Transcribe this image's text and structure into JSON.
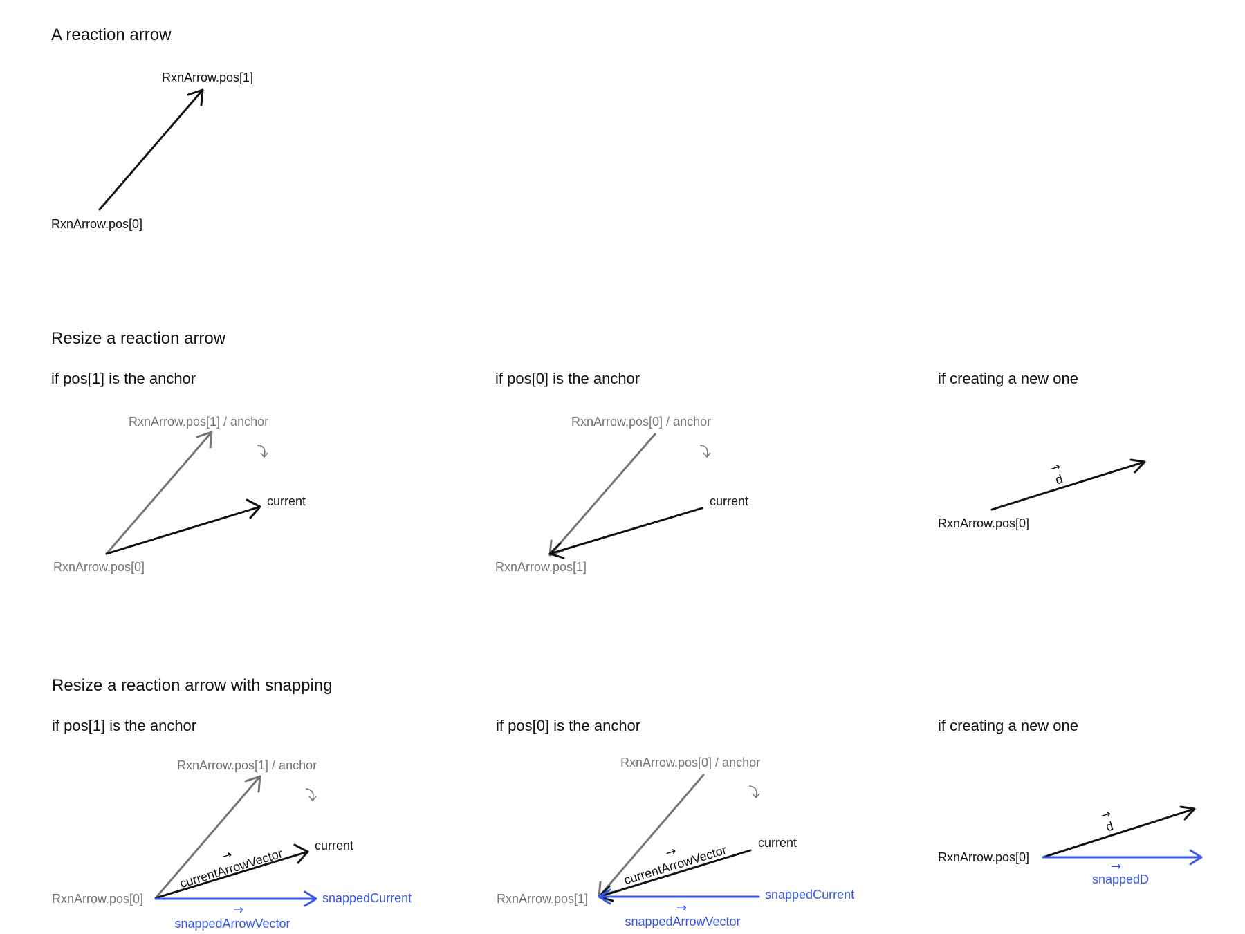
{
  "colors": {
    "primary": "#111111",
    "anchor": "#757575",
    "snap": "#3757e6"
  },
  "sections": {
    "basic": {
      "title": "A reaction arrow",
      "end_label": "RxnArrow.pos[1]",
      "start_label": "RxnArrow.pos[0]"
    },
    "resize": {
      "title": "Resize a reaction arrow",
      "panel_a": {
        "title": "if pos[1] is the anchor",
        "anchor_label": "RxnArrow.pos[1] / anchor",
        "rotate_icon": "rotate-arrow-icon",
        "current_label": "current",
        "origin_label": "RxnArrow.pos[0]"
      },
      "panel_b": {
        "title": "if pos[0] is the anchor",
        "anchor_label": "RxnArrow.pos[0] / anchor",
        "rotate_icon": "rotate-arrow-icon",
        "current_label": "current",
        "origin_label": "RxnArrow.pos[1]"
      },
      "panel_c": {
        "title": "if creating a new one",
        "vector_label": "d",
        "origin_label": "RxnArrow.pos[0]"
      }
    },
    "snap": {
      "title": "Resize a reaction arrow with snapping",
      "panel_a": {
        "title": "if pos[1] is the anchor",
        "anchor_label": "RxnArrow.pos[1] / anchor",
        "rotate_icon": "rotate-arrow-icon",
        "current_label": "current",
        "vector_label": "currentArrowVector",
        "origin_label": "RxnArrow.pos[0]",
        "snapped_label": "snappedCurrent",
        "snapped_vector_label": "snappedArrowVector"
      },
      "panel_b": {
        "title": "if pos[0] is the anchor",
        "anchor_label": "RxnArrow.pos[0] / anchor",
        "rotate_icon": "rotate-arrow-icon",
        "current_label": "current",
        "vector_label": "currentArrowVector",
        "origin_label": "RxnArrow.pos[1]",
        "snapped_label": "snappedCurrent",
        "snapped_vector_label": "snappedArrowVector"
      },
      "panel_c": {
        "title": "if creating a new one",
        "vector_label": "d",
        "origin_label": "RxnArrow.pos[0]",
        "snapped_vector_label": "snappedD"
      }
    }
  }
}
